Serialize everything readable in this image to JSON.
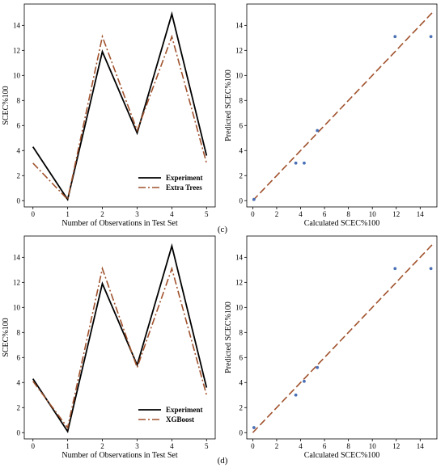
{
  "colors": {
    "experiment": "#000000",
    "model": "#a0522d",
    "points": "#4a6fb5"
  },
  "panel_labels": [
    "(c)",
    "(d)"
  ],
  "chart_data": [
    {
      "type": "line",
      "xlabel": "Number of Observations in Test Set",
      "ylabel": "SCEC%100",
      "x": [
        0,
        1,
        2,
        3,
        4,
        5
      ],
      "xticks": [
        0,
        1,
        2,
        3,
        4,
        5
      ],
      "yticks": [
        0,
        2,
        4,
        6,
        8,
        10,
        12,
        14
      ],
      "xlim": [
        -0.25,
        5.25
      ],
      "ylim": [
        -0.5,
        15.7
      ],
      "legend_position": "bottom-right",
      "series": [
        {
          "name": "Experiment",
          "style": "solid",
          "values": [
            4.3,
            0.1,
            11.9,
            5.4,
            14.9,
            3.6
          ]
        },
        {
          "name": "Extra Trees",
          "style": "dashdot",
          "values": [
            3.0,
            0.1,
            13.1,
            5.6,
            13.1,
            3.0
          ]
        }
      ]
    },
    {
      "type": "scatter",
      "xlabel": "Calculated SCEC%100",
      "ylabel": "Predicted SCEC%100",
      "xticks": [
        0,
        2,
        4,
        6,
        8,
        10,
        12,
        14
      ],
      "yticks": [
        0,
        2,
        4,
        6,
        8,
        10,
        12,
        14
      ],
      "xlim": [
        -0.5,
        15.4
      ],
      "ylim": [
        -0.5,
        15.7
      ],
      "reference_line": {
        "from": [
          0,
          0
        ],
        "to": [
          15,
          15
        ]
      },
      "points": [
        {
          "x": 0.1,
          "y": 0.1
        },
        {
          "x": 3.6,
          "y": 3.0
        },
        {
          "x": 4.3,
          "y": 3.0
        },
        {
          "x": 5.4,
          "y": 5.6
        },
        {
          "x": 11.9,
          "y": 13.1
        },
        {
          "x": 14.9,
          "y": 13.1
        }
      ]
    },
    {
      "type": "line",
      "xlabel": "Number of Observations in Test Set",
      "ylabel": "SCEC%100",
      "x": [
        0,
        1,
        2,
        3,
        4,
        5
      ],
      "xticks": [
        0,
        1,
        2,
        3,
        4,
        5
      ],
      "yticks": [
        0,
        2,
        4,
        6,
        8,
        10,
        12,
        14
      ],
      "xlim": [
        -0.25,
        5.25
      ],
      "ylim": [
        -0.5,
        15.7
      ],
      "legend_position": "bottom-right",
      "series": [
        {
          "name": "Experiment",
          "style": "solid",
          "values": [
            4.3,
            0.1,
            11.9,
            5.4,
            14.9,
            3.6
          ]
        },
        {
          "name": "XGBoost",
          "style": "dashdot",
          "values": [
            4.1,
            0.4,
            13.1,
            5.2,
            13.1,
            3.0
          ]
        }
      ]
    },
    {
      "type": "scatter",
      "xlabel": "Calculated SCEC%100",
      "ylabel": "Predicted SCEC%100",
      "xticks": [
        0,
        2,
        4,
        6,
        8,
        10,
        12,
        14
      ],
      "yticks": [
        0,
        2,
        4,
        6,
        8,
        10,
        12,
        14
      ],
      "xlim": [
        -0.5,
        15.4
      ],
      "ylim": [
        -0.5,
        15.7
      ],
      "reference_line": {
        "from": [
          0,
          0
        ],
        "to": [
          15,
          15
        ]
      },
      "points": [
        {
          "x": 0.1,
          "y": 0.4
        },
        {
          "x": 3.6,
          "y": 3.0
        },
        {
          "x": 4.3,
          "y": 4.1
        },
        {
          "x": 5.4,
          "y": 5.2
        },
        {
          "x": 11.9,
          "y": 13.1
        },
        {
          "x": 14.9,
          "y": 13.1
        }
      ]
    }
  ]
}
